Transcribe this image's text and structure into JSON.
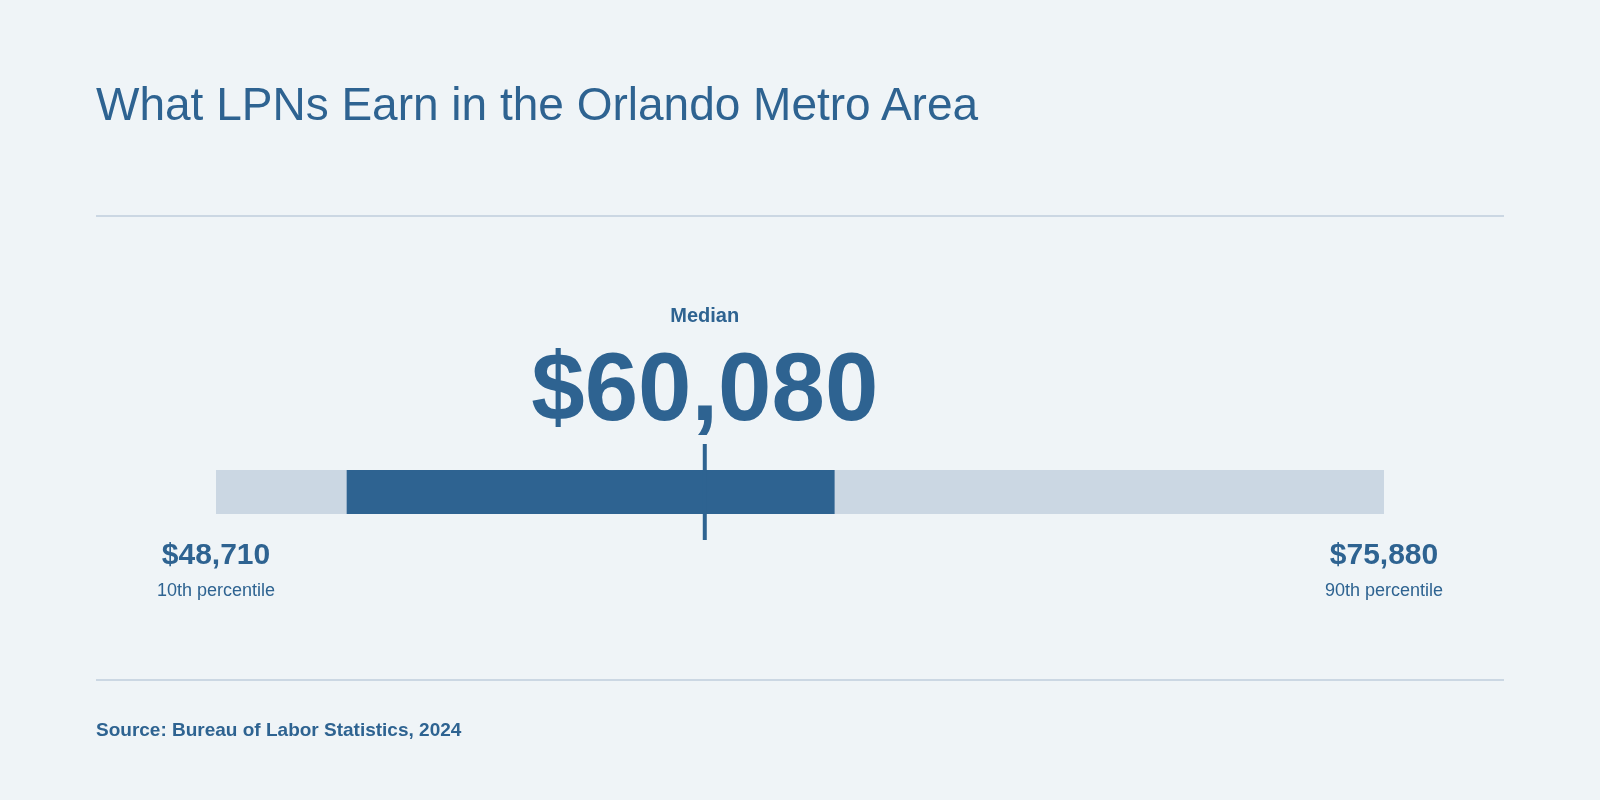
{
  "chart_data": {
    "type": "bar",
    "title": "What LPNs Earn in the Orlando Metro Area",
    "orientation": "horizontal",
    "categories": [
      null
    ],
    "base": [
      51750
    ],
    "values": [
      11350
    ],
    "color": "#2e6391",
    "xlim": [
      48710,
      75880
    ],
    "xticks": [
      {
        "value": 48710,
        "label": "$48,710"
      },
      {
        "value": 75880,
        "label": "$75,880"
      }
    ],
    "bands": [
      {
        "axis": "x",
        "from": 48710,
        "to": 75880,
        "color": "#cbd7e3"
      }
    ],
    "ref_lines": [
      {
        "axis": "x",
        "value": 60080,
        "label": "$60,080",
        "color": "#2e6391"
      }
    ],
    "annotations": [
      "Median",
      "10th percentile",
      "90th percentile",
      "Source: Bureau of Labor Statistics, 2024"
    ]
  }
}
